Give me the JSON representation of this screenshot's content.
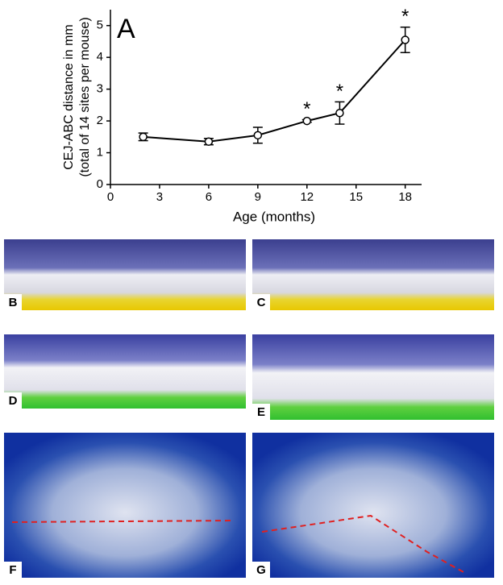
{
  "chart_data": {
    "type": "line",
    "panel_label": "A",
    "ylabel": [
      "CEJ-ABC distance in mm",
      "(total of 14 sites per mouse)"
    ],
    "xlabel": "Age (months)",
    "x": [
      2,
      6,
      9,
      12,
      14,
      18
    ],
    "values": [
      1.5,
      1.35,
      1.55,
      2.0,
      2.25,
      4.55
    ],
    "errors": [
      0.12,
      0.1,
      0.25,
      0.04,
      0.35,
      0.4
    ],
    "significance": [
      null,
      null,
      null,
      "*",
      "*",
      "*"
    ],
    "color": "#000000",
    "xlim": [
      0,
      19
    ],
    "ylim": [
      0,
      5.5
    ],
    "xticks": [
      0,
      3,
      6,
      9,
      12,
      15,
      18
    ],
    "yticks": [
      0,
      1,
      2,
      3,
      4,
      5
    ]
  },
  "panels": [
    "B",
    "C",
    "D",
    "E",
    "F",
    "G"
  ]
}
